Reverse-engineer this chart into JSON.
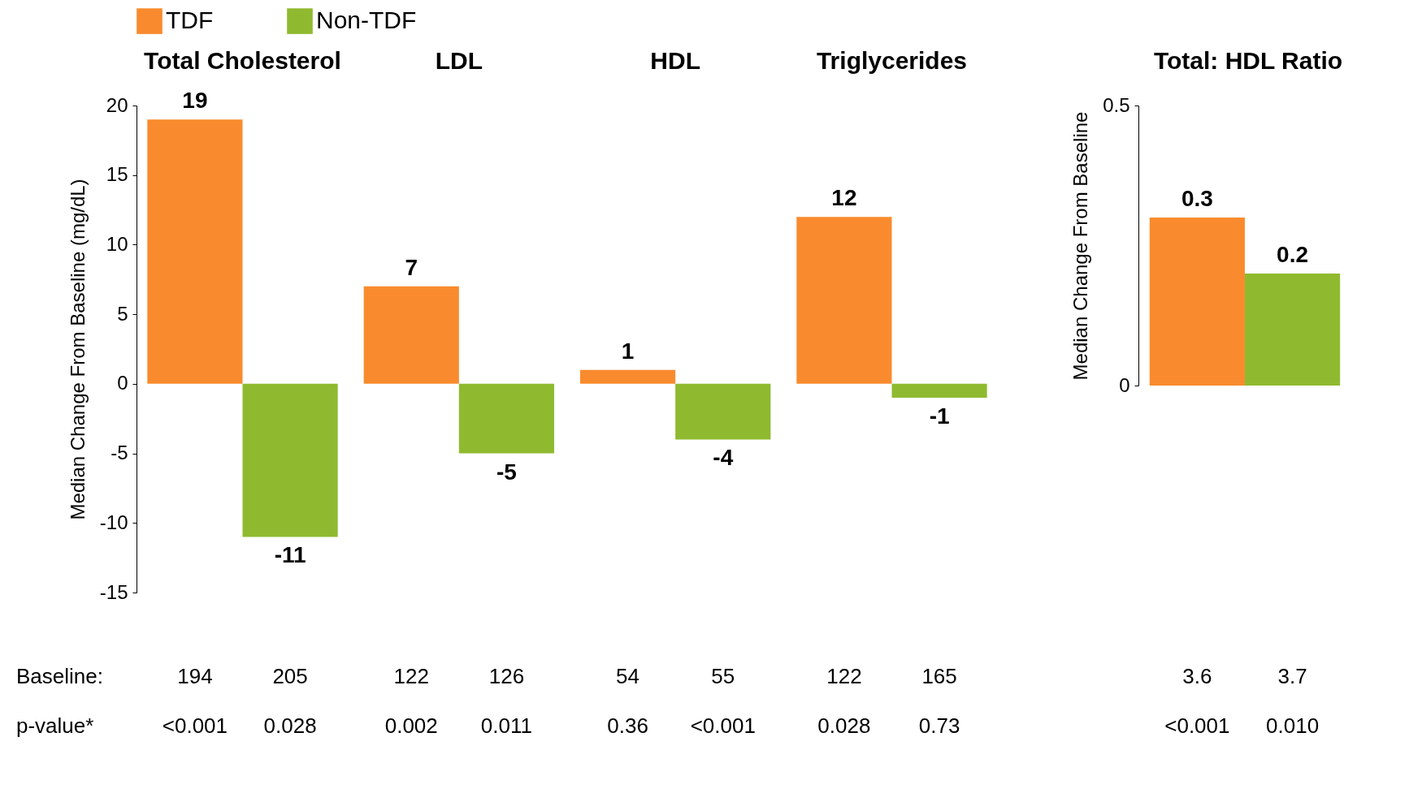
{
  "chart_data": [
    {
      "type": "bar",
      "categories": [
        "Total Cholesterol",
        "LDL",
        "HDL",
        "Triglycerides"
      ],
      "ylabel": "Median Change From Baseline (mg/dL)",
      "ylim": [
        -15,
        20
      ],
      "yticks": [
        -15,
        -10,
        -5,
        0,
        5,
        10,
        15,
        20
      ],
      "grid": false,
      "legend": "top",
      "data_labels": true,
      "series": [
        {
          "name": "TDF",
          "color": "#f98b2e",
          "values": [
            19,
            7,
            1,
            12
          ]
        },
        {
          "name": "Non-TDF",
          "color": "#8fba2f",
          "values": [
            -11,
            -5,
            -4,
            -1
          ]
        }
      ],
      "annotations": [
        "Baseline:",
        "194",
        "205",
        "122",
        "126",
        "54",
        "55",
        "122",
        "165",
        "p-value*",
        "<0.001",
        "0.028",
        "0.002",
        "0.011",
        "0.36",
        "<0.001",
        "0.028",
        "0.73"
      ]
    },
    {
      "type": "bar",
      "categories": [
        "Total: HDL Ratio"
      ],
      "ylabel": "Median Change From Baseline",
      "ylim": [
        0,
        0.5
      ],
      "yticks": [
        0,
        0.5
      ],
      "grid": false,
      "data_labels": true,
      "series": [
        {
          "name": "TDF",
          "color": "#f98b2e",
          "values": [
            0.3
          ]
        },
        {
          "name": "Non-TDF",
          "color": "#8fba2f",
          "values": [
            0.2
          ]
        }
      ],
      "annotations": [
        "3.6",
        "3.7",
        "<0.001",
        "0.010"
      ]
    }
  ]
}
